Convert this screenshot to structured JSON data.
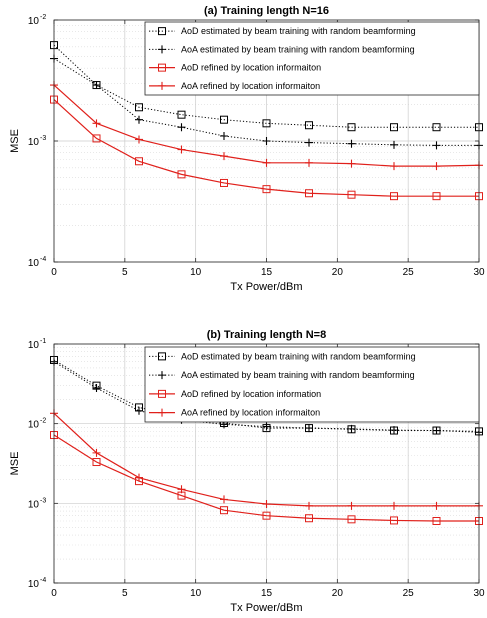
{
  "chart_data": [
    {
      "type": "line",
      "title": "(a) Training length N=16",
      "xlabel": "Tx Power/dBm",
      "ylabel": "MSE",
      "xlim": [
        0,
        30
      ],
      "ylim": [
        0.0001,
        0.01
      ],
      "yscale": "log",
      "xticks": [
        0,
        5,
        10,
        15,
        20,
        25,
        30
      ],
      "yticks": [
        {
          "base": "10",
          "exp": "-4"
        },
        {
          "base": "10",
          "exp": "-3"
        },
        {
          "base": "10",
          "exp": "-2"
        }
      ],
      "grid": true,
      "legend_position": "top-right",
      "series": [
        {
          "name": "AoD estimated by beam training with random beamforming",
          "color": "#000000",
          "marker": "square",
          "style": "dotted",
          "x": [
            0,
            3,
            6,
            9,
            12,
            15,
            18,
            21,
            24,
            27,
            30
          ],
          "y": [
            0.0062,
            0.0029,
            0.0019,
            0.00165,
            0.0015,
            0.0014,
            0.00135,
            0.0013,
            0.0013,
            0.0013,
            0.0013
          ]
        },
        {
          "name": "AoA estimated by beam training with random beamforming",
          "color": "#000000",
          "marker": "plus",
          "style": "dotted",
          "x": [
            0,
            3,
            6,
            9,
            12,
            15,
            18,
            21,
            24,
            27,
            30
          ],
          "y": [
            0.0048,
            0.0029,
            0.0015,
            0.0013,
            0.0011,
            0.001,
            0.00097,
            0.00095,
            0.00093,
            0.00092,
            0.00092
          ]
        },
        {
          "name": "AoD refined by location informaiton",
          "color": "#e0201b",
          "marker": "square",
          "style": "solid",
          "x": [
            0,
            3,
            6,
            9,
            12,
            15,
            18,
            21,
            24,
            27,
            30
          ],
          "y": [
            0.0022,
            0.00105,
            0.00068,
            0.00053,
            0.00045,
            0.0004,
            0.00037,
            0.00036,
            0.00035,
            0.00035,
            0.00035
          ]
        },
        {
          "name": "AoA refined by location informaiton",
          "color": "#e0201b",
          "marker": "plus",
          "style": "solid",
          "x": [
            0,
            3,
            6,
            9,
            12,
            15,
            18,
            21,
            24,
            27,
            30
          ],
          "y": [
            0.0029,
            0.0014,
            0.00103,
            0.00085,
            0.00075,
            0.00066,
            0.00066,
            0.00065,
            0.00062,
            0.00062,
            0.00063
          ]
        }
      ]
    },
    {
      "type": "line",
      "title": "(b) Training length N=8",
      "xlabel": "Tx Power/dBm",
      "ylabel": "MSE",
      "xlim": [
        0,
        30
      ],
      "ylim": [
        0.0001,
        0.1
      ],
      "yscale": "log",
      "xticks": [
        0,
        5,
        10,
        15,
        20,
        25,
        30
      ],
      "yticks": [
        {
          "base": "10",
          "exp": "-4"
        },
        {
          "base": "10",
          "exp": "-3"
        },
        {
          "base": "10",
          "exp": "-2"
        },
        {
          "base": "10",
          "exp": "-1"
        }
      ],
      "grid": true,
      "legend_position": "top-right",
      "series": [
        {
          "name": "AoD estimated by beam training with random beamforming",
          "color": "#000000",
          "marker": "square",
          "style": "dotted",
          "x": [
            0,
            3,
            6,
            9,
            12,
            15,
            18,
            21,
            24,
            27,
            30
          ],
          "y": [
            0.063,
            0.03,
            0.016,
            0.012,
            0.0102,
            0.0088,
            0.0088,
            0.0085,
            0.0082,
            0.0082,
            0.008
          ]
        },
        {
          "name": "AoA estimated by beam training with random beamforming",
          "color": "#000000",
          "marker": "plus",
          "style": "dotted",
          "x": [
            0,
            3,
            6,
            9,
            12,
            15,
            18,
            21,
            24,
            27,
            30
          ],
          "y": [
            0.06,
            0.028,
            0.0145,
            0.0112,
            0.0098,
            0.0092,
            0.0088,
            0.0086,
            0.0083,
            0.0082,
            0.0078
          ]
        },
        {
          "name": "AoD refined by location information",
          "color": "#e0201b",
          "marker": "square",
          "style": "solid",
          "x": [
            0,
            3,
            6,
            9,
            12,
            15,
            18,
            21,
            24,
            27,
            30
          ],
          "y": [
            0.0072,
            0.0033,
            0.0019,
            0.00125,
            0.00082,
            0.0007,
            0.00065,
            0.00063,
            0.00061,
            0.0006,
            0.0006
          ]
        },
        {
          "name": "AoA refined by location informaiton",
          "color": "#e0201b",
          "marker": "plus",
          "style": "solid",
          "x": [
            0,
            3,
            6,
            9,
            12,
            15,
            18,
            21,
            24,
            27,
            30
          ],
          "y": [
            0.0135,
            0.0043,
            0.0021,
            0.0015,
            0.00112,
            0.00098,
            0.00093,
            0.00093,
            0.00093,
            0.00093,
            0.00093
          ]
        }
      ]
    }
  ]
}
